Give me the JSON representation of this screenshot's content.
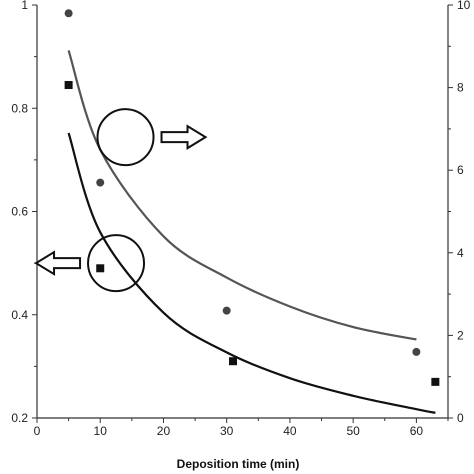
{
  "chart_data": {
    "type": "scatter",
    "title": "",
    "xlabel": "Deposition time (min)",
    "ylabel_left": "",
    "ylabel_right": "",
    "xlim": [
      0,
      65
    ],
    "ylim_left": [
      0.2,
      1.0
    ],
    "ylim_right": [
      0,
      10
    ],
    "x_ticks": [
      "0",
      "10",
      "20",
      "30",
      "40",
      "50",
      "60"
    ],
    "y_left_ticks": [
      "0.2",
      "0.4",
      "0.6",
      "0.8",
      "1"
    ],
    "y_right_ticks": [
      "0",
      "2",
      "4",
      "6",
      "8",
      "10"
    ],
    "grid": false,
    "series": [
      {
        "marker": "square",
        "axis": "left",
        "color": "#111111",
        "x": [
          5,
          10,
          31,
          63
        ],
        "y": [
          0.845,
          0.49,
          0.31,
          0.27
        ]
      },
      {
        "marker": "circle",
        "axis": "right",
        "color": "#444444",
        "x": [
          5,
          10,
          30,
          60
        ],
        "y": [
          9.8,
          5.7,
          2.6,
          1.6
        ]
      }
    ],
    "fit_curves": [
      {
        "axis": "left",
        "color": "#111111",
        "x": [
          5,
          10,
          20,
          30,
          40,
          50,
          60,
          63
        ],
        "y": [
          0.752,
          0.56,
          0.404,
          0.327,
          0.277,
          0.243,
          0.217,
          0.21
        ]
      },
      {
        "axis": "right",
        "color": "#555555",
        "x": [
          5,
          10,
          20,
          30,
          40,
          50,
          60
        ],
        "y": [
          8.9,
          6.5,
          4.4,
          3.4,
          2.7,
          2.2,
          1.9
        ]
      }
    ],
    "annotations": [
      {
        "shape": "circle",
        "axis": "left",
        "x": 12.5,
        "y": 0.5,
        "arrow": "left"
      },
      {
        "shape": "circle",
        "axis": "right",
        "x": 14,
        "y": 6.8,
        "arrow": "right"
      }
    ]
  }
}
